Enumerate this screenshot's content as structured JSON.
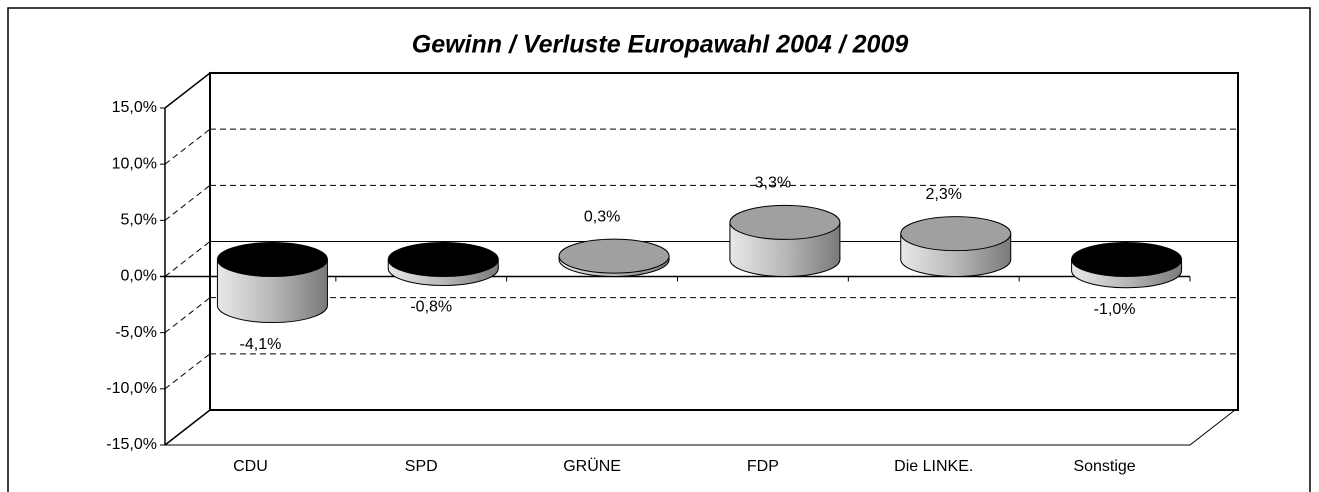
{
  "chart_data": {
    "type": "bar3d",
    "title": "Gewinn / Verluste Europawahl 2004 / 2009",
    "categories": [
      "CDU",
      "SPD",
      "GRÜNE",
      "FDP",
      "Die LINKE.",
      "Sonstige"
    ],
    "values": [
      -4.1,
      -0.8,
      0.3,
      3.3,
      2.3,
      -1.0
    ],
    "value_labels": [
      "-4,1%",
      "-0,8%",
      "0,3%",
      "3,3%",
      "2,3%",
      "-1,0%"
    ],
    "ylim": [
      -15,
      15
    ],
    "yticks": [
      {
        "value": -15,
        "label": "-15,0%"
      },
      {
        "value": -10,
        "label": "-10,0%"
      },
      {
        "value": -5,
        "label": "-5,0%"
      },
      {
        "value": 0,
        "label": "0,0%"
      },
      {
        "value": 5,
        "label": "5,0%"
      },
      {
        "value": 10,
        "label": "10,0%"
      },
      {
        "value": 15,
        "label": "15,0%"
      }
    ],
    "grid": true,
    "color": "#a0a0a0",
    "negative_top_color": "#000000"
  }
}
